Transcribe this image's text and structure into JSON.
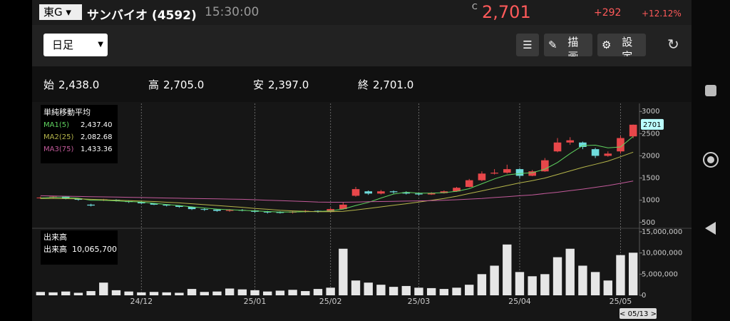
{
  "header": {
    "market": "東G",
    "name": "サンバイオ (4592)",
    "time": "15:30:00",
    "price_flag": "C",
    "price": "2,701",
    "change": "+292",
    "change_pct": "+12.12%"
  },
  "toolbar": {
    "period": "日足",
    "draw": "描画",
    "settings": "設定"
  },
  "summary": [
    {
      "label": "始",
      "value": "2,438.0"
    },
    {
      "label": "高",
      "value": "2,705.0"
    },
    {
      "label": "安",
      "value": "2,397.0"
    },
    {
      "label": "終",
      "value": "2,701.0"
    }
  ],
  "chart_data": {
    "type": "candlestick",
    "categories": [
      null,
      null,
      null,
      null,
      null,
      null,
      null,
      null,
      "24/12",
      null,
      null,
      null,
      null,
      null,
      null,
      null,
      null,
      "25/01",
      null,
      null,
      null,
      null,
      null,
      "25/02",
      null,
      null,
      null,
      null,
      null,
      null,
      "25/03",
      null,
      null,
      null,
      null,
      null,
      null,
      null,
      "25/04",
      null,
      null,
      null,
      null,
      null,
      null,
      null,
      "25/05",
      null
    ],
    "open": [
      1050,
      1060,
      1080,
      1040,
      900,
      1000,
      1010,
      980,
      960,
      930,
      900,
      880,
      850,
      800,
      790,
      760,
      780,
      770,
      740,
      730,
      720,
      740,
      760,
      740,
      800,
      1100,
      1200,
      1150,
      1200,
      1180,
      1150,
      1130,
      1160,
      1200,
      1300,
      1450,
      1600,
      1620,
      1700,
      1550,
      1650,
      2100,
      2300,
      2300,
      2150,
      2000,
      2100,
      2438
    ],
    "high": [
      1080,
      1100,
      1090,
      1050,
      920,
      1030,
      1020,
      990,
      970,
      940,
      910,
      890,
      860,
      820,
      800,
      800,
      800,
      780,
      760,
      750,
      760,
      780,
      770,
      830,
      950,
      1300,
      1220,
      1230,
      1220,
      1200,
      1170,
      1180,
      1220,
      1300,
      1480,
      1650,
      1700,
      1800,
      1720,
      1680,
      1950,
      2400,
      2420,
      2320,
      2180,
      2100,
      2450,
      2705
    ],
    "low": [
      1030,
      1040,
      1020,
      990,
      860,
      980,
      970,
      940,
      920,
      890,
      860,
      830,
      780,
      760,
      740,
      740,
      750,
      720,
      700,
      700,
      700,
      720,
      720,
      730,
      790,
      1080,
      1120,
      1130,
      1150,
      1130,
      1110,
      1120,
      1150,
      1190,
      1290,
      1430,
      1580,
      1600,
      1500,
      1540,
      1640,
      2080,
      2250,
      2150,
      1950,
      1980,
      2050,
      2397
    ],
    "close": [
      1060,
      1080,
      1040,
      1010,
      880,
      1020,
      990,
      960,
      930,
      900,
      880,
      850,
      800,
      790,
      760,
      780,
      770,
      740,
      730,
      720,
      740,
      760,
      740,
      800,
      900,
      1250,
      1150,
      1200,
      1180,
      1150,
      1130,
      1160,
      1200,
      1280,
      1450,
      1600,
      1620,
      1700,
      1550,
      1650,
      1900,
      2300,
      2350,
      2200,
      2000,
      2050,
      2400,
      2701
    ],
    "up_color": "#e8474a",
    "down_color": "#6fdcdc",
    "ylim": [
      400,
      3100
    ],
    "yticks": [
      500,
      1000,
      1500,
      2000,
      2500,
      3000
    ],
    "indicator_title": "単純移動平均",
    "series": [
      {
        "name": "MA1(5)",
        "value_label": "2,437.40",
        "color": "#5fd35f",
        "values": [
          1050,
          1065,
          1060,
          1045,
          1000,
          1000,
          985,
          970,
          960,
          930,
          905,
          880,
          850,
          825,
          800,
          785,
          775,
          760,
          745,
          735,
          735,
          740,
          745,
          760,
          800,
          880,
          950,
          1050,
          1140,
          1180,
          1160,
          1160,
          1170,
          1200,
          1260,
          1370,
          1480,
          1570,
          1600,
          1620,
          1700,
          1850,
          2050,
          2230,
          2240,
          2180,
          2200,
          2437.4
        ]
      },
      {
        "name": "MA2(25)",
        "value_label": "2,082.68",
        "color": "#b5b54a",
        "values": [
          1040,
          1040,
          1035,
          1030,
          1020,
          1010,
          1000,
          990,
          980,
          970,
          955,
          940,
          920,
          900,
          880,
          860,
          840,
          815,
          795,
          775,
          760,
          750,
          740,
          740,
          750,
          780,
          815,
          850,
          885,
          920,
          960,
          1000,
          1040,
          1090,
          1150,
          1210,
          1270,
          1330,
          1390,
          1440,
          1500,
          1580,
          1660,
          1740,
          1810,
          1880,
          1980,
          2082.68
        ]
      },
      {
        "name": "MA3(75)",
        "value_label": "1,433.36",
        "color": "#c25a9a",
        "values": [
          1100,
          1095,
          1090,
          1085,
          1080,
          1075,
          1070,
          1065,
          1060,
          1055,
          1050,
          1045,
          1040,
          1035,
          1030,
          1025,
          1020,
          1010,
          1000,
          990,
          980,
          970,
          960,
          955,
          955,
          960,
          965,
          970,
          975,
          980,
          985,
          990,
          1000,
          1010,
          1025,
          1040,
          1060,
          1080,
          1100,
          1120,
          1150,
          1180,
          1215,
          1250,
          1290,
          1330,
          1380,
          1433.36
        ]
      }
    ],
    "volume": {
      "title": "出来高",
      "name": "出来高",
      "value_label": "10,065,700",
      "color": "#e6e6e6",
      "values": [
        800000,
        700000,
        900000,
        600000,
        1000000,
        3000000,
        1200000,
        900000,
        700000,
        800000,
        700000,
        600000,
        1500000,
        800000,
        900000,
        1600000,
        1400000,
        1200000,
        900000,
        1100000,
        1300000,
        1000000,
        1500000,
        1800000,
        11000000,
        3500000,
        3000000,
        2500000,
        2000000,
        2200000,
        1800000,
        1700000,
        1500000,
        1800000,
        2500000,
        5000000,
        7000000,
        12000000,
        5500000,
        4500000,
        5000000,
        9000000,
        11000000,
        7000000,
        5500000,
        3500000,
        9500000,
        10065700
      ],
      "ylim": [
        0,
        15500000
      ],
      "yticks": [
        0,
        {
          "value": 5000000,
          "label": "5,000,000"
        },
        {
          "value": 10000000,
          "label": "10,000,000"
        },
        {
          "value": 15000000,
          "label": "15,000,000"
        }
      ]
    },
    "date_tag": "< 05/13 >"
  }
}
